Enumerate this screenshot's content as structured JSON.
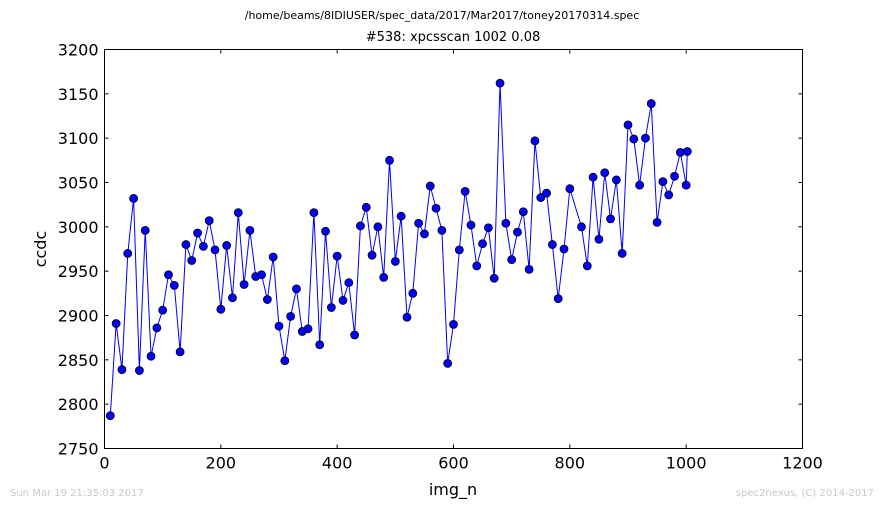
{
  "header": {
    "file_path": "/home/beams/8IDIUSER/spec_data/2017/Mar2017/toney20170314.spec",
    "scan_title": "#538: xpcsscan 1002 0.08"
  },
  "footer": {
    "timestamp": "Sun Mar 19 21:35:03 2017",
    "credit": "spec2nexus, (C) 2014-2017"
  },
  "chart_data": {
    "type": "line",
    "title": "#538: xpcsscan 1002 0.08",
    "xlabel": "img_n",
    "ylabel": "ccdc",
    "xlim": [
      0,
      1200
    ],
    "ylim": [
      2750,
      3200
    ],
    "xticks": [
      0,
      200,
      400,
      600,
      800,
      1000,
      1200
    ],
    "yticks": [
      2750,
      2800,
      2850,
      2900,
      2950,
      3000,
      3050,
      3100,
      3150,
      3200
    ],
    "line_color": "#0000ff",
    "marker": "circle",
    "grid": false,
    "series": [
      {
        "x": [
          10,
          20,
          30,
          40,
          50,
          60,
          70,
          80,
          90,
          100,
          110,
          120,
          130,
          140,
          150,
          160,
          170,
          180,
          190,
          200,
          210,
          220,
          230,
          240,
          250,
          260,
          270,
          280,
          290,
          300,
          310,
          320,
          330,
          340,
          350,
          360,
          370,
          380,
          390,
          400,
          410,
          420,
          430,
          440,
          450,
          460,
          470,
          480,
          490,
          500,
          510,
          520,
          530,
          540,
          550,
          560,
          570,
          580,
          590,
          600,
          610,
          620,
          630,
          640,
          650,
          660,
          670,
          680,
          690,
          700,
          710,
          720,
          730,
          740,
          750,
          760,
          770,
          780,
          790,
          800,
          820,
          830,
          840,
          850,
          860,
          870,
          880,
          890,
          900,
          910,
          920,
          930,
          940,
          950,
          960,
          970,
          980,
          990,
          1000,
          1002
        ],
        "values": [
          2787,
          2891,
          2839,
          2970,
          3032,
          2838,
          2996,
          2854,
          2886,
          2906,
          2946,
          2934,
          2859,
          2980,
          2962,
          2993,
          2978,
          3007,
          2974,
          2907,
          2979,
          2920,
          3016,
          2935,
          2996,
          2944,
          2946,
          2918,
          2966,
          2888,
          2849,
          2899,
          2930,
          2882,
          2885,
          3016,
          2867,
          2995,
          2909,
          2967,
          2917,
          2937,
          2878,
          3001,
          3022,
          2968,
          3000,
          2943,
          3075,
          2961,
          3012,
          2898,
          2925,
          3004,
          2992,
          3046,
          3021,
          2996,
          2846,
          2890,
          2974,
          3040,
          3002,
          2956,
          2981,
          2999,
          2942,
          3162,
          3004,
          2963,
          2994,
          3017,
          2952,
          3097,
          3033,
          3038,
          2980,
          2919,
          2975,
          3043,
          3000,
          2956,
          3056,
          2986,
          3061,
          3009,
          3053,
          2970,
          3115,
          3099,
          3047,
          3100,
          3139,
          3005,
          3051,
          3036,
          3057,
          3084,
          3047,
          3085
        ]
      }
    ]
  }
}
